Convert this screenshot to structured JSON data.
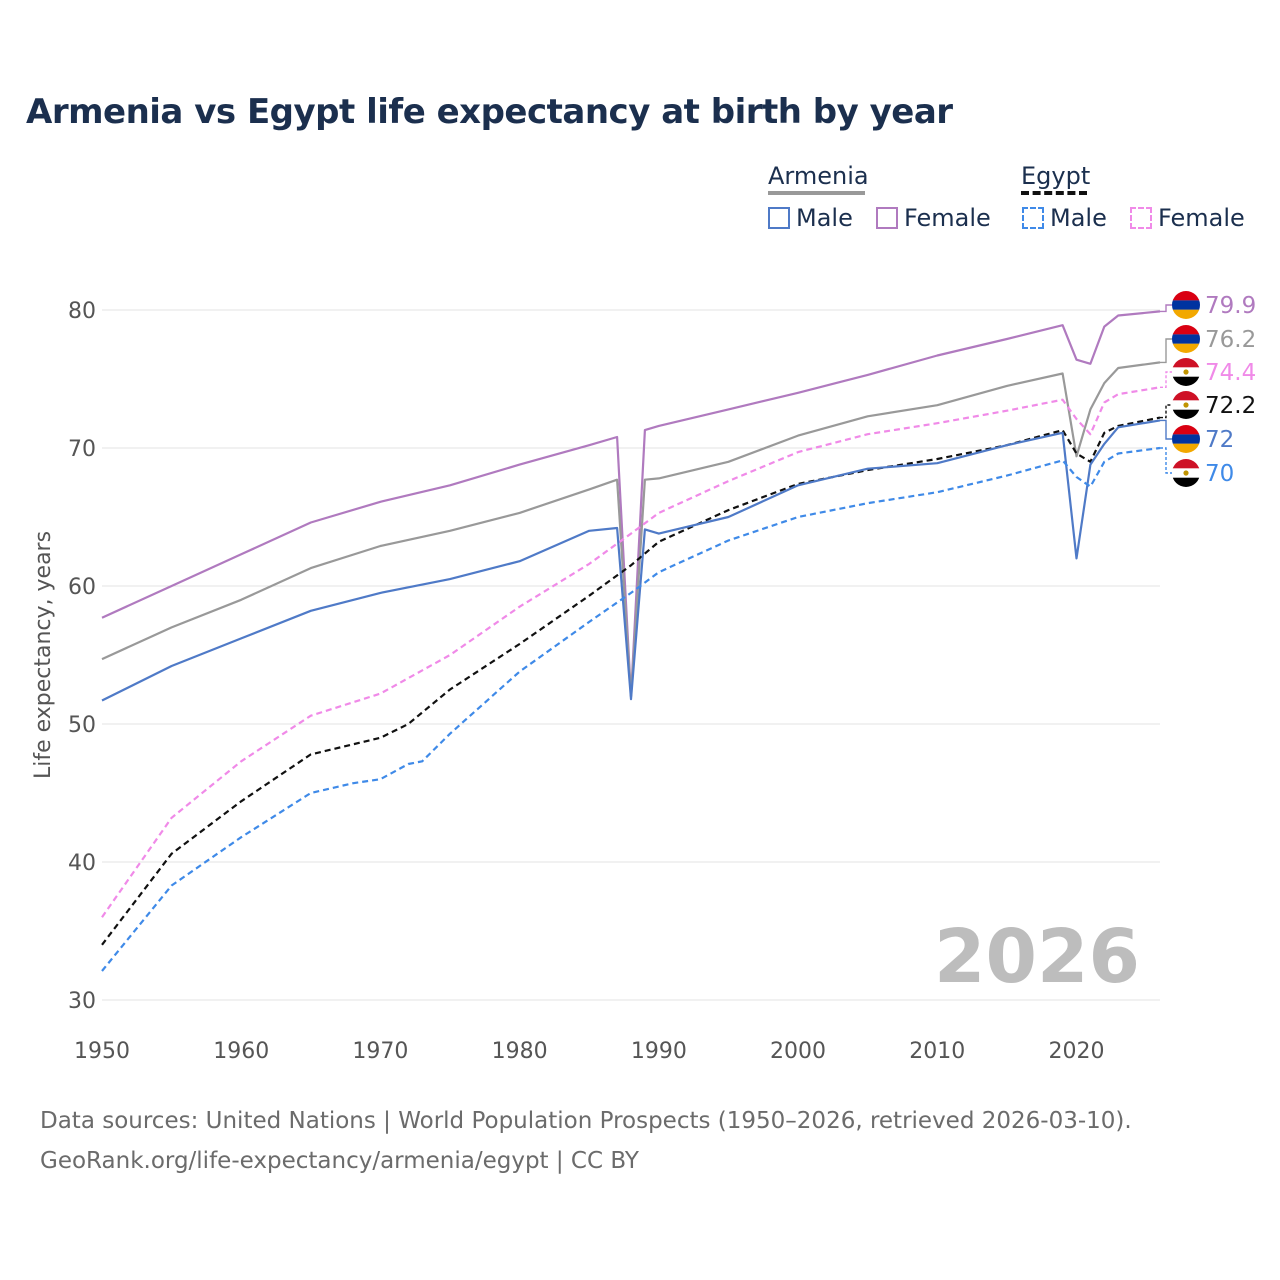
{
  "title": "Armenia vs Egypt life expectancy at birth by year",
  "legend": {
    "groups": [
      {
        "label": "Armenia",
        "line_style": "solid",
        "color": "#999999"
      },
      {
        "label": "Egypt",
        "line_style": "dashed",
        "color": "#111111"
      }
    ],
    "items": [
      {
        "label": "Male",
        "color": "#4f7ac7",
        "style": "solid"
      },
      {
        "label": "Female",
        "color": "#b07abf",
        "style": "solid"
      },
      {
        "label": "Male",
        "color": "#3f8ae8",
        "style": "dashed"
      },
      {
        "label": "Female",
        "color": "#f08ae8",
        "style": "dashed"
      }
    ]
  },
  "watermark_year": "2026",
  "footer": {
    "line1": "Data sources: United Nations | World Population Prospects (1950–2026, retrieved 2026-03-10).",
    "line2": "GeoRank.org/life-expectancy/armenia/egypt | CC BY"
  },
  "chart_data": {
    "type": "line",
    "title": "Armenia vs Egypt life expectancy at birth by year",
    "xlabel": "",
    "ylabel": "Life expectancy, years",
    "xlim": [
      1950,
      2026
    ],
    "ylim": [
      30,
      82
    ],
    "xticks": [
      1950,
      1960,
      1970,
      1980,
      1990,
      2000,
      2010,
      2020
    ],
    "yticks": [
      30,
      40,
      50,
      60,
      70,
      80
    ],
    "grid": true,
    "series": [
      {
        "name": "Armenia Female",
        "country": "Armenia",
        "flag": "armenia",
        "color": "#b07abf",
        "dashed": false,
        "end_label": "79.9",
        "points": [
          [
            1950,
            57.7
          ],
          [
            1955,
            60.0
          ],
          [
            1960,
            62.3
          ],
          [
            1965,
            64.6
          ],
          [
            1970,
            66.1
          ],
          [
            1975,
            67.3
          ],
          [
            1980,
            68.8
          ],
          [
            1985,
            70.2
          ],
          [
            1987,
            70.8
          ],
          [
            1988,
            52.0
          ],
          [
            1989,
            71.3
          ],
          [
            1990,
            71.6
          ],
          [
            1995,
            72.8
          ],
          [
            2000,
            74.0
          ],
          [
            2005,
            75.3
          ],
          [
            2010,
            76.7
          ],
          [
            2015,
            77.9
          ],
          [
            2019,
            78.9
          ],
          [
            2020,
            76.4
          ],
          [
            2021,
            76.1
          ],
          [
            2022,
            78.8
          ],
          [
            2023,
            79.6
          ],
          [
            2026,
            79.9
          ]
        ]
      },
      {
        "name": "Armenia Total",
        "country": "Armenia",
        "flag": "armenia",
        "color": "#999999",
        "dashed": false,
        "end_label": "76.2",
        "points": [
          [
            1950,
            54.7
          ],
          [
            1955,
            57.0
          ],
          [
            1960,
            59.0
          ],
          [
            1965,
            61.3
          ],
          [
            1970,
            62.9
          ],
          [
            1975,
            64.0
          ],
          [
            1980,
            65.3
          ],
          [
            1985,
            67.0
          ],
          [
            1987,
            67.7
          ],
          [
            1988,
            52.0
          ],
          [
            1989,
            67.7
          ],
          [
            1990,
            67.8
          ],
          [
            1995,
            69.0
          ],
          [
            2000,
            70.9
          ],
          [
            2005,
            72.3
          ],
          [
            2010,
            73.1
          ],
          [
            2015,
            74.5
          ],
          [
            2019,
            75.4
          ],
          [
            2020,
            69.4
          ],
          [
            2021,
            72.8
          ],
          [
            2022,
            74.7
          ],
          [
            2023,
            75.8
          ],
          [
            2026,
            76.2
          ]
        ]
      },
      {
        "name": "Egypt Female",
        "country": "Egypt",
        "flag": "egypt",
        "color": "#f08ae8",
        "dashed": true,
        "end_label": "74.4",
        "points": [
          [
            1950,
            36.0
          ],
          [
            1955,
            43.2
          ],
          [
            1960,
            47.3
          ],
          [
            1965,
            50.6
          ],
          [
            1970,
            52.2
          ],
          [
            1975,
            55.0
          ],
          [
            1980,
            58.5
          ],
          [
            1985,
            61.6
          ],
          [
            1988,
            63.8
          ],
          [
            1990,
            65.3
          ],
          [
            1995,
            67.6
          ],
          [
            2000,
            69.7
          ],
          [
            2005,
            71.0
          ],
          [
            2010,
            71.8
          ],
          [
            2015,
            72.7
          ],
          [
            2019,
            73.5
          ],
          [
            2020,
            72.1
          ],
          [
            2021,
            71.0
          ],
          [
            2022,
            73.3
          ],
          [
            2023,
            73.9
          ],
          [
            2026,
            74.4
          ]
        ]
      },
      {
        "name": "Egypt Total",
        "country": "Egypt",
        "flag": "egypt",
        "color": "#111111",
        "dashed": true,
        "end_label": "72.2",
        "points": [
          [
            1950,
            34.0
          ],
          [
            1955,
            40.6
          ],
          [
            1960,
            44.4
          ],
          [
            1965,
            47.8
          ],
          [
            1970,
            49.0
          ],
          [
            1972,
            50.0
          ],
          [
            1975,
            52.5
          ],
          [
            1980,
            55.8
          ],
          [
            1985,
            59.3
          ],
          [
            1988,
            61.5
          ],
          [
            1990,
            63.2
          ],
          [
            1995,
            65.5
          ],
          [
            2000,
            67.4
          ],
          [
            2005,
            68.4
          ],
          [
            2010,
            69.2
          ],
          [
            2015,
            70.2
          ],
          [
            2019,
            71.3
          ],
          [
            2020,
            69.6
          ],
          [
            2021,
            69.0
          ],
          [
            2022,
            71.1
          ],
          [
            2023,
            71.6
          ],
          [
            2026,
            72.2
          ]
        ]
      },
      {
        "name": "Armenia Male",
        "country": "Armenia",
        "flag": "armenia",
        "color": "#4f7ac7",
        "dashed": false,
        "end_label": "72",
        "points": [
          [
            1950,
            51.7
          ],
          [
            1955,
            54.2
          ],
          [
            1960,
            56.2
          ],
          [
            1965,
            58.2
          ],
          [
            1970,
            59.5
          ],
          [
            1975,
            60.5
          ],
          [
            1980,
            61.8
          ],
          [
            1985,
            64.0
          ],
          [
            1987,
            64.2
          ],
          [
            1988,
            51.8
          ],
          [
            1989,
            64.1
          ],
          [
            1990,
            63.8
          ],
          [
            1995,
            65.0
          ],
          [
            2000,
            67.3
          ],
          [
            2005,
            68.5
          ],
          [
            2010,
            68.9
          ],
          [
            2015,
            70.2
          ],
          [
            2019,
            71.1
          ],
          [
            2020,
            62.0
          ],
          [
            2021,
            68.8
          ],
          [
            2022,
            70.3
          ],
          [
            2023,
            71.5
          ],
          [
            2026,
            72.0
          ]
        ]
      },
      {
        "name": "Egypt Male",
        "country": "Egypt",
        "flag": "egypt",
        "color": "#3f8ae8",
        "dashed": true,
        "end_label": "70",
        "points": [
          [
            1950,
            32.1
          ],
          [
            1955,
            38.3
          ],
          [
            1960,
            41.8
          ],
          [
            1965,
            45.0
          ],
          [
            1968,
            45.7
          ],
          [
            1970,
            46.0
          ],
          [
            1972,
            47.1
          ],
          [
            1973,
            47.3
          ],
          [
            1975,
            49.3
          ],
          [
            1980,
            53.8
          ],
          [
            1985,
            57.4
          ],
          [
            1988,
            59.5
          ],
          [
            1990,
            61.0
          ],
          [
            1995,
            63.3
          ],
          [
            2000,
            65.0
          ],
          [
            2005,
            66.0
          ],
          [
            2010,
            66.8
          ],
          [
            2015,
            68.0
          ],
          [
            2019,
            69.1
          ],
          [
            2020,
            67.9
          ],
          [
            2021,
            67.2
          ],
          [
            2022,
            69.0
          ],
          [
            2023,
            69.6
          ],
          [
            2026,
            70.0
          ]
        ]
      }
    ]
  }
}
